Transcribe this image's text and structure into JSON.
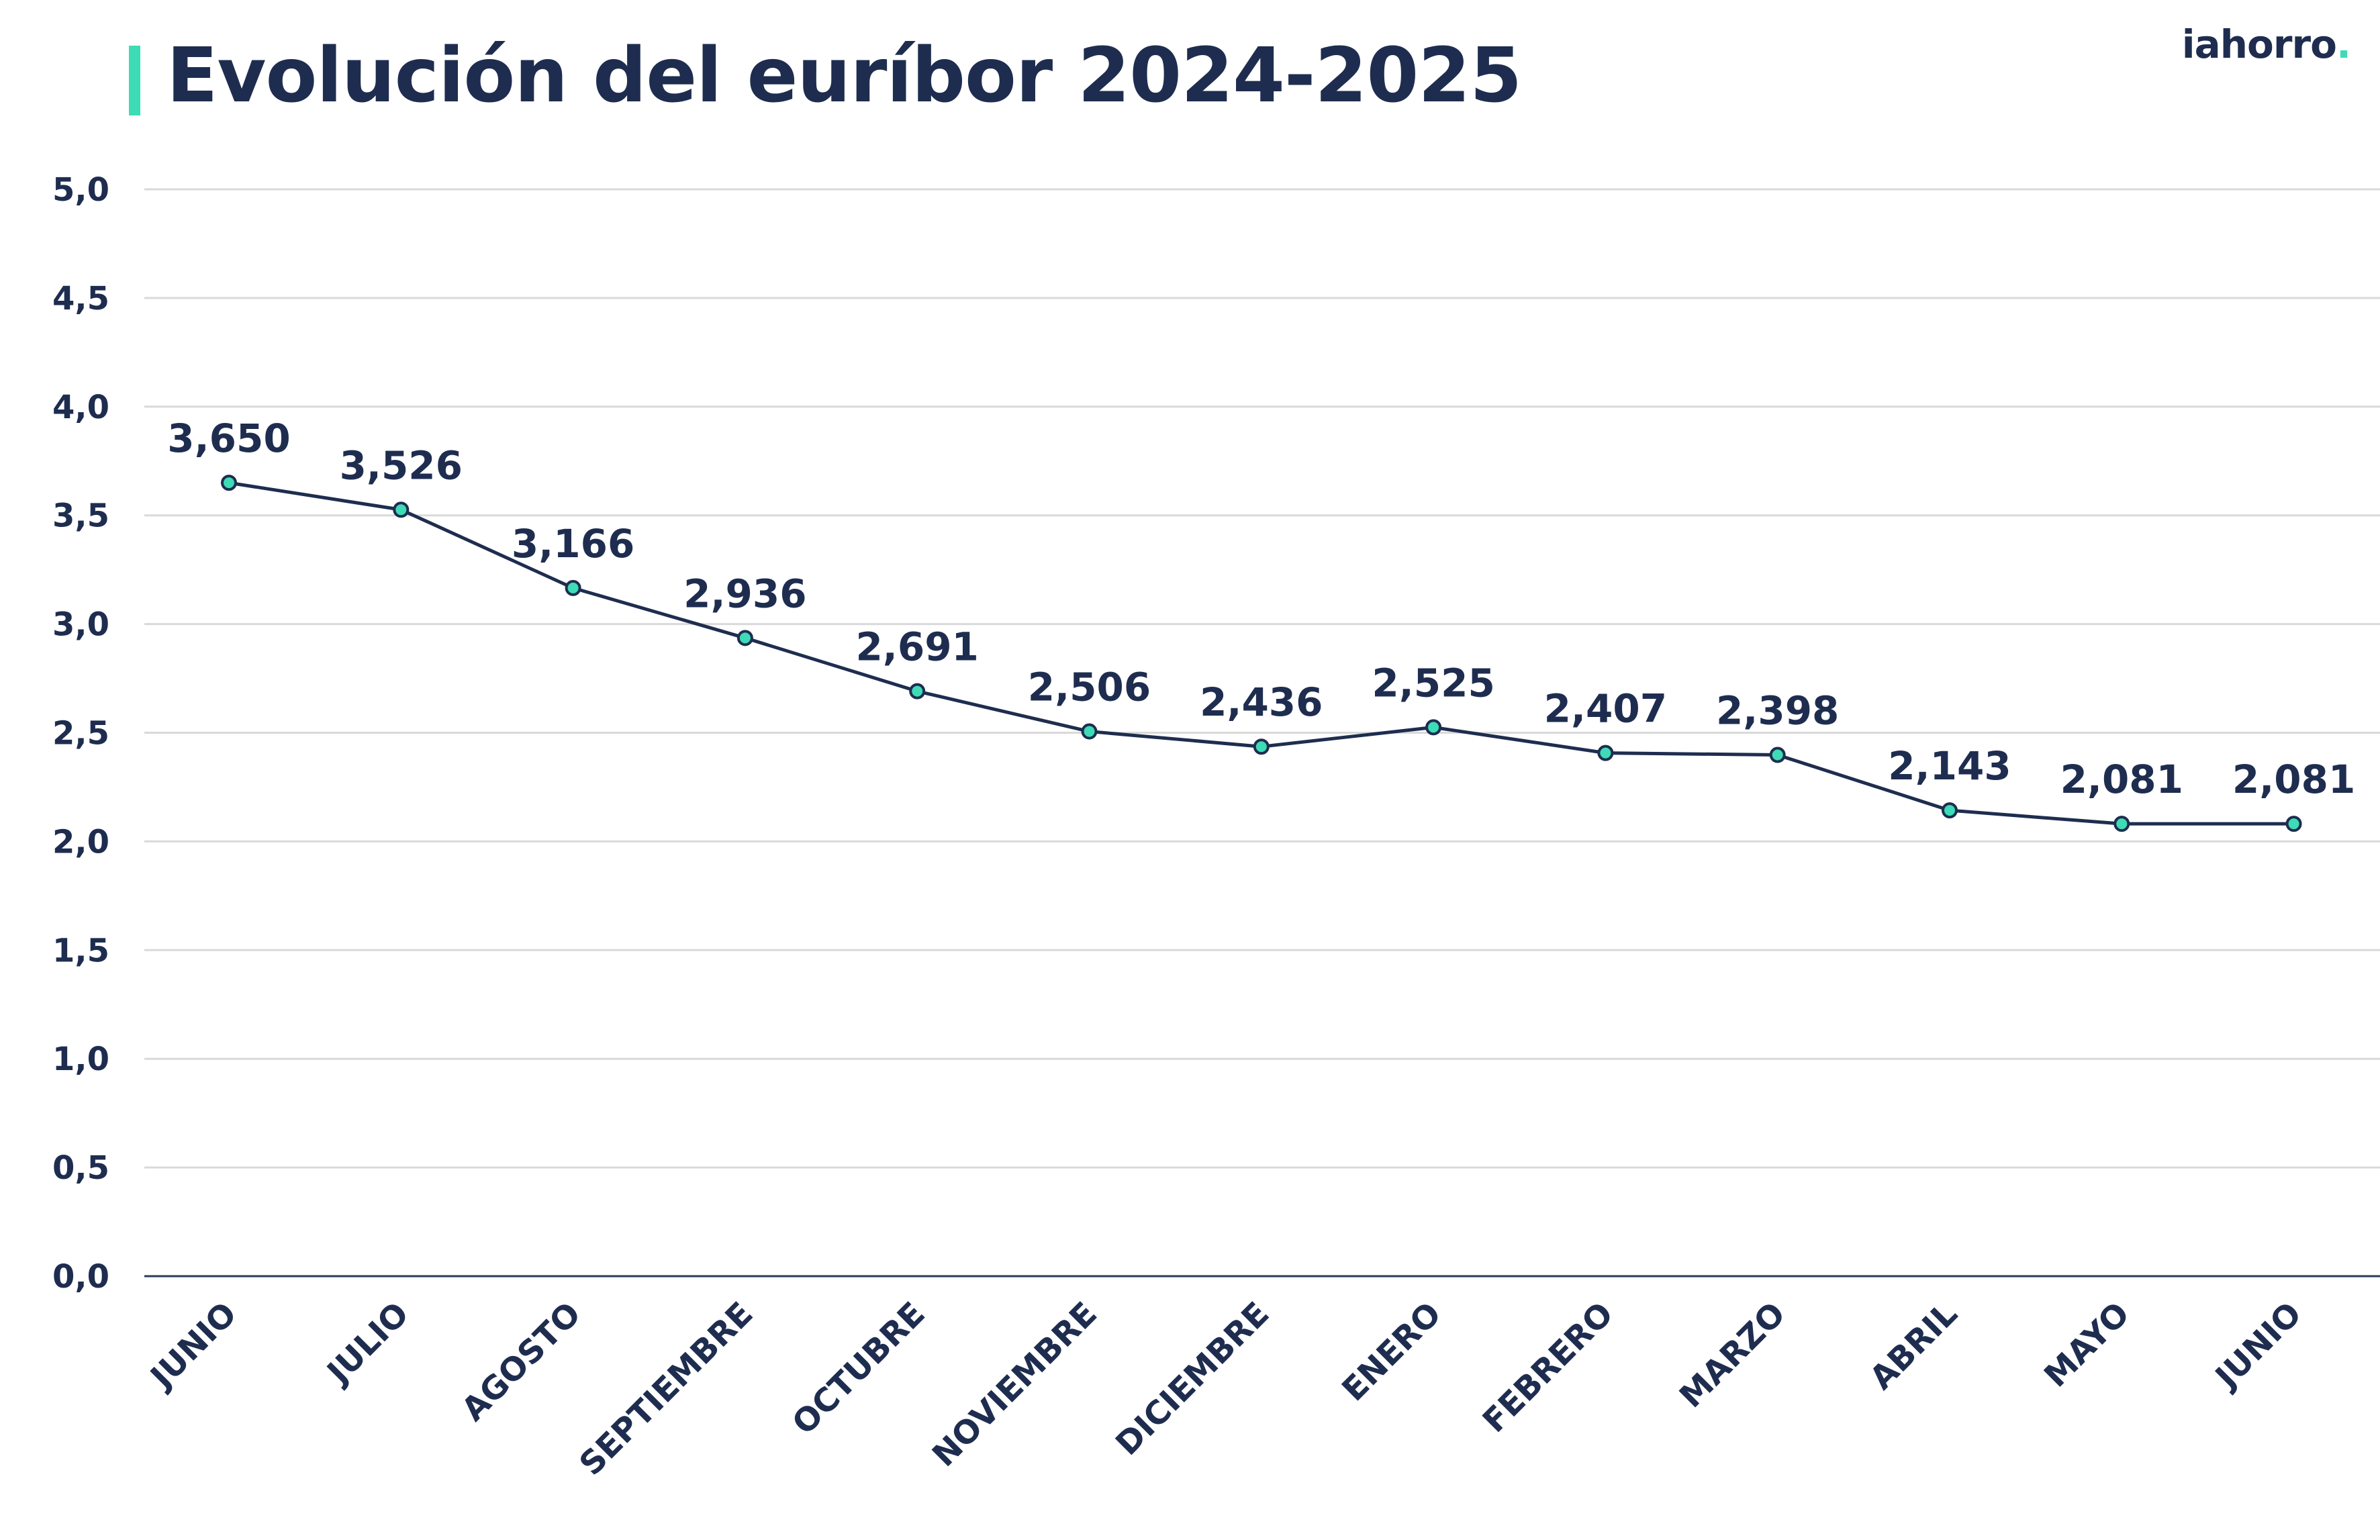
{
  "title": "Evolución del euríbor 2024-2025",
  "brand": {
    "name": "iahorro",
    "suffix": "."
  },
  "colors": {
    "text": "#1e2d4f",
    "accent": "#3ddbb6",
    "grid": "#d9d9d9",
    "axis": "#2b3a55",
    "line": "#1e2d4f",
    "marker_fill": "#3ddbb6",
    "marker_stroke": "#1e2d4f"
  },
  "chart_data": {
    "type": "line",
    "title": "Evolución del euríbor 2024-2025",
    "xlabel": "",
    "ylabel": "",
    "ylim": [
      0,
      5
    ],
    "yticks": [
      "0,0",
      "0,5",
      "1,0",
      "1,5",
      "2,0",
      "2,5",
      "3,0",
      "3,5",
      "4,0",
      "4,5",
      "5,0"
    ],
    "ytick_values": [
      0,
      0.5,
      1,
      1.5,
      2,
      2.5,
      3,
      3.5,
      4,
      4.5,
      5
    ],
    "grid": true,
    "legend": "none",
    "categories": [
      "JUNIO",
      "JULIO",
      "AGOSTO",
      "SEPTIEMBRE",
      "OCTUBRE",
      "NOVIEMBRE",
      "DICIEMBRE",
      "ENERO",
      "FEBRERO",
      "MARZO",
      "ABRIL",
      "MAYO",
      "JUNIO"
    ],
    "series": [
      {
        "values": [
          3.65,
          3.526,
          3.166,
          2.936,
          2.691,
          2.506,
          2.436,
          2.525,
          2.407,
          2.398,
          2.143,
          2.081,
          2.081
        ],
        "labels": [
          "3,650",
          "3,526",
          "3,166",
          "2,936",
          "2,691",
          "2,506",
          "2,436",
          "2,525",
          "2,407",
          "2,398",
          "2,143",
          "2,081",
          "2,081"
        ]
      }
    ]
  }
}
